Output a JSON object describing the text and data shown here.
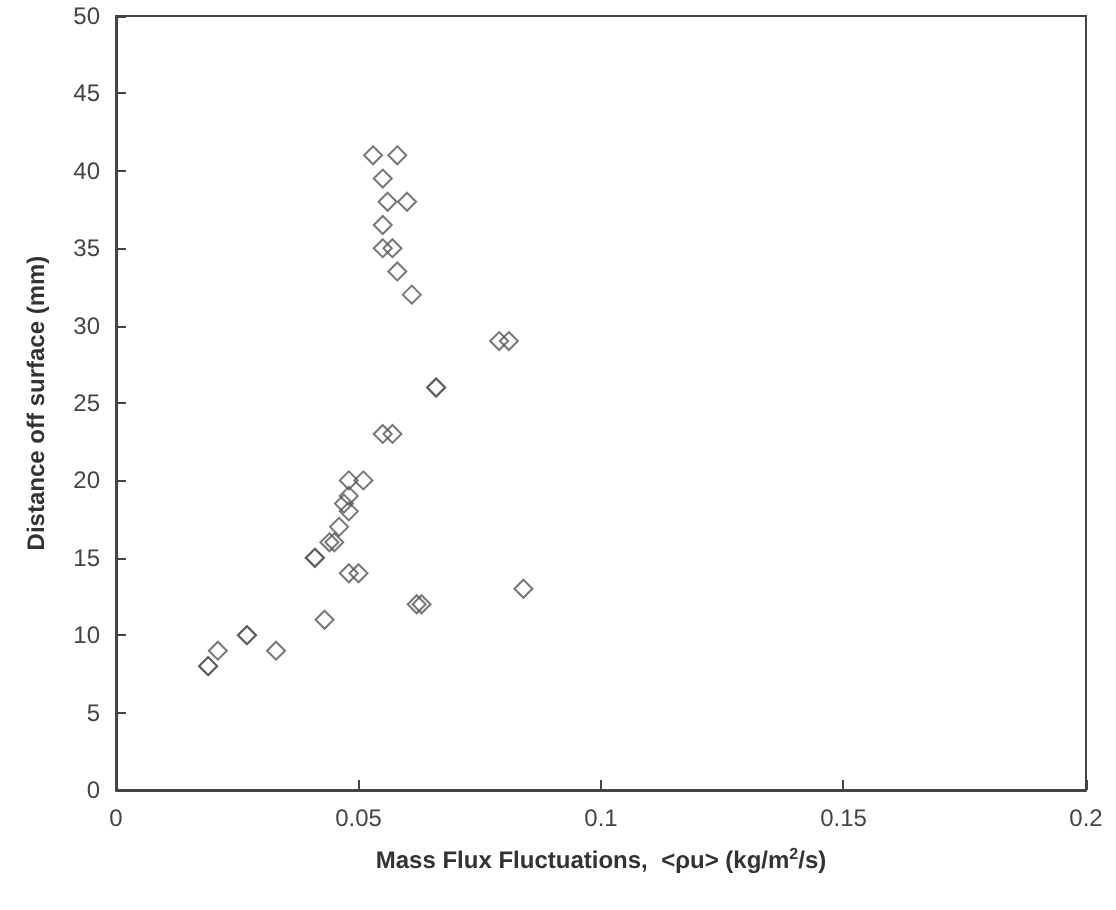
{
  "chart_data": {
    "type": "scatter",
    "xlabel": "Mass Flux Fluctuations,  <ρu> (kg/m$^{2}$/s)",
    "ylabel": "Distance off surface (mm)",
    "x": [
      0.053,
      0.058,
      0.055,
      0.056,
      0.06,
      0.055,
      0.055,
      0.057,
      0.058,
      0.061,
      0.079,
      0.081,
      0.066,
      0.066,
      0.055,
      0.057,
      0.048,
      0.051,
      0.048,
      0.047,
      0.048,
      0.046,
      0.045,
      0.044,
      0.041,
      0.041,
      0.048,
      0.05,
      0.043,
      0.062,
      0.063,
      0.084,
      0.019,
      0.019,
      0.021,
      0.027,
      0.027,
      0.033
    ],
    "series": [
      {
        "color": "#555555",
        "values": [
          41,
          41,
          39.5,
          38,
          38,
          36.5,
          35,
          35,
          33.5,
          32,
          29,
          29,
          26,
          26,
          23,
          23,
          20,
          20,
          19,
          18.5,
          18,
          17,
          16,
          16,
          15,
          15,
          14,
          14,
          11,
          12,
          12,
          13,
          8,
          8,
          9,
          10,
          10,
          9
        ]
      }
    ],
    "xlim": [
      0,
      0.2
    ],
    "xticks": [
      0,
      0.05,
      0.1,
      0.15,
      0.2
    ],
    "ylim": [
      0,
      50
    ],
    "yticks": [
      0,
      5,
      10,
      15,
      20,
      25,
      30,
      35,
      40,
      45,
      50
    ],
    "marker": "diamond",
    "grid": false
  }
}
